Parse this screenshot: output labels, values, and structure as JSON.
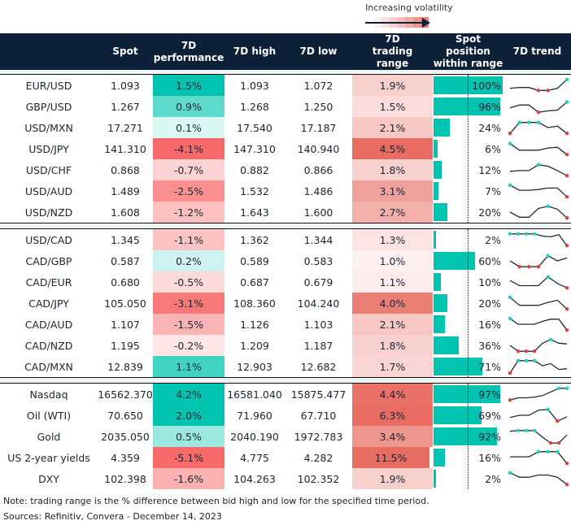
{
  "legend": {
    "label": "Increasing volatility",
    "gradient": [
      "#fdf0f0",
      "#fbe1e1",
      "#f8d0cf",
      "#f5bebd",
      "#f2aaa8",
      "#ee9592",
      "#ea7f7b"
    ]
  },
  "header": {
    "columns": [
      {
        "key": "name",
        "label": ""
      },
      {
        "key": "spot",
        "label": "Spot"
      },
      {
        "key": "perf",
        "label": "7D performance"
      },
      {
        "key": "high",
        "label": "7D high"
      },
      {
        "key": "low",
        "label": "7D low"
      },
      {
        "key": "range",
        "label": "7D trading range"
      },
      {
        "key": "pos",
        "label": "Spot position within range"
      },
      {
        "key": "trend",
        "label": "7D trend"
      }
    ]
  },
  "sections": [
    {
      "rows": [
        {
          "name": "EUR/USD",
          "spot": "1.093",
          "perf": "1.5%",
          "perf_val": 1.5,
          "high": "1.093",
          "low": "1.072",
          "range": "1.9%",
          "range_val": 1.9,
          "pos": "100%",
          "pos_val": 100,
          "trend": [
            0.3,
            0.35,
            0.35,
            0.15,
            0.15,
            0.3,
            0.9
          ]
        },
        {
          "name": "GBP/USD",
          "spot": "1.267",
          "perf": "0.9%",
          "perf_val": 0.9,
          "high": "1.268",
          "low": "1.250",
          "range": "1.5%",
          "range_val": 1.5,
          "pos": "96%",
          "pos_val": 96,
          "trend": [
            0.4,
            0.6,
            0.6,
            0.1,
            0.2,
            0.25,
            0.8
          ]
        },
        {
          "name": "USD/MXN",
          "spot": "17.271",
          "perf": "0.1%",
          "perf_val": 0.1,
          "high": "17.540",
          "low": "17.187",
          "range": "2.1%",
          "range_val": 2.1,
          "pos": "24%",
          "pos_val": 24,
          "trend": [
            0.1,
            0.85,
            0.85,
            0.85,
            0.5,
            0.6,
            0.1
          ]
        },
        {
          "name": "USD/JPY",
          "spot": "141.310",
          "perf": "-4.1%",
          "perf_val": -4.1,
          "high": "147.310",
          "low": "140.940",
          "range": "4.5%",
          "range_val": 4.5,
          "pos": "6%",
          "pos_val": 6,
          "trend": [
            0.85,
            0.4,
            0.4,
            0.4,
            0.55,
            0.6,
            0.1
          ]
        },
        {
          "name": "USD/CHF",
          "spot": "0.868",
          "perf": "-0.7%",
          "perf_val": -0.7,
          "high": "0.882",
          "low": "0.866",
          "range": "1.8%",
          "range_val": 1.8,
          "pos": "12%",
          "pos_val": 12,
          "trend": [
            0.4,
            0.45,
            0.45,
            0.85,
            0.75,
            0.45,
            0.1
          ]
        },
        {
          "name": "USD/AUD",
          "spot": "1.489",
          "perf": "-2.5%",
          "perf_val": -2.5,
          "high": "1.532",
          "low": "1.486",
          "range": "3.1%",
          "range_val": 3.1,
          "pos": "7%",
          "pos_val": 7,
          "trend": [
            0.9,
            0.55,
            0.55,
            0.6,
            0.7,
            0.7,
            0.1
          ]
        },
        {
          "name": "USD/NZD",
          "spot": "1.608",
          "perf": "-1.2%",
          "perf_val": -1.2,
          "high": "1.643",
          "low": "1.600",
          "range": "2.7%",
          "range_val": 2.7,
          "pos": "20%",
          "pos_val": 20,
          "trend": [
            0.5,
            0.15,
            0.15,
            0.75,
            0.9,
            0.7,
            0.1
          ]
        }
      ]
    },
    {
      "rows": [
        {
          "name": "USD/CAD",
          "spot": "1.345",
          "perf": "-1.1%",
          "perf_val": -1.1,
          "high": "1.362",
          "low": "1.344",
          "range": "1.3%",
          "range_val": 1.3,
          "pos": "2%",
          "pos_val": 2,
          "trend": [
            0.9,
            0.9,
            0.9,
            0.9,
            0.75,
            0.7,
            0.85,
            0.1
          ]
        },
        {
          "name": "CAD/GBP",
          "spot": "0.587",
          "perf": "0.2%",
          "perf_val": 0.2,
          "high": "0.589",
          "low": "0.583",
          "range": "1.0%",
          "range_val": 1.0,
          "pos": "60%",
          "pos_val": 60,
          "trend": [
            0.5,
            0.1,
            0.1,
            0.1,
            0.85,
            0.5,
            0.7
          ]
        },
        {
          "name": "CAD/EUR",
          "spot": "0.680",
          "perf": "-0.5%",
          "perf_val": -0.5,
          "high": "0.687",
          "low": "0.679",
          "range": "1.1%",
          "range_val": 1.1,
          "pos": "10%",
          "pos_val": 10,
          "trend": [
            0.6,
            0.25,
            0.25,
            0.25,
            0.85,
            0.4,
            0.1
          ]
        },
        {
          "name": "CAD/JPY",
          "spot": "105.050",
          "perf": "-3.1%",
          "perf_val": -3.1,
          "high": "108.360",
          "low": "104.240",
          "range": "4.0%",
          "range_val": 4.0,
          "pos": "20%",
          "pos_val": 20,
          "trend": [
            0.9,
            0.35,
            0.35,
            0.35,
            0.55,
            0.7,
            0.1
          ]
        },
        {
          "name": "CAD/AUD",
          "spot": "1.107",
          "perf": "-1.5%",
          "perf_val": -1.5,
          "high": "1.126",
          "low": "1.103",
          "range": "2.1%",
          "range_val": 2.1,
          "pos": "16%",
          "pos_val": 16,
          "trend": [
            0.9,
            0.5,
            0.5,
            0.5,
            0.7,
            0.85,
            0.85,
            0.1
          ]
        },
        {
          "name": "CAD/NZD",
          "spot": "1.195",
          "perf": "-0.2%",
          "perf_val": -0.2,
          "high": "1.209",
          "low": "1.187",
          "range": "1.8%",
          "range_val": 1.8,
          "pos": "36%",
          "pos_val": 36,
          "trend": [
            0.5,
            0.1,
            0.1,
            0.1,
            0.65,
            0.9,
            0.65,
            0.6
          ]
        },
        {
          "name": "CAD/MXN",
          "spot": "12.839",
          "perf": "1.1%",
          "perf_val": 1.1,
          "high": "12.903",
          "low": "12.682",
          "range": "1.7%",
          "range_val": 1.7,
          "pos": "71%",
          "pos_val": 71,
          "trend": [
            0.05,
            0.9,
            0.9,
            0.9,
            0.55,
            0.7,
            0.3,
            0.35
          ]
        }
      ]
    },
    {
      "rows": [
        {
          "name": "Nasdaq",
          "spot": "16562.370",
          "perf": "4.2%",
          "perf_val": 4.2,
          "high": "16581.040",
          "low": "15875.477",
          "range": "4.4%",
          "range_val": 4.4,
          "pos": "97%",
          "pos_val": 97,
          "trend": [
            0.1,
            0.25,
            0.25,
            0.3,
            0.4,
            0.65,
            0.9,
            0.9
          ]
        },
        {
          "name": "Oil (WTI)",
          "spot": "70.650",
          "perf": "2.0%",
          "perf_val": 2.0,
          "high": "71.960",
          "low": "67.710",
          "range": "6.3%",
          "range_val": 6.3,
          "pos": "69%",
          "pos_val": 69,
          "trend": [
            0.35,
            0.5,
            0.5,
            0.85,
            0.9,
            0.1,
            0.4
          ]
        },
        {
          "name": "Gold",
          "spot": "2035.050",
          "perf": "0.5%",
          "perf_val": 0.5,
          "high": "2040.190",
          "low": "1972.783",
          "range": "3.4%",
          "range_val": 3.4,
          "pos": "92%",
          "pos_val": 92,
          "trend": [
            0.85,
            0.9,
            0.9,
            0.9,
            0.45,
            0.05,
            0.05,
            0.6
          ]
        },
        {
          "name": "US 2-year yields",
          "spot": "4.359",
          "perf": "-5.1%",
          "perf_val": -5.1,
          "high": "4.775",
          "low": "4.282",
          "range": "11.5%",
          "range_val": 11.5,
          "pos": "16%",
          "pos_val": 16,
          "trend": [
            0.55,
            0.55,
            0.55,
            0.9,
            0.9,
            0.9,
            0.1
          ]
        },
        {
          "name": "DXY",
          "spot": "102.398",
          "perf": "-1.6%",
          "perf_val": -1.6,
          "high": "104.263",
          "low": "102.352",
          "range": "1.9%",
          "range_val": 1.9,
          "pos": "2%",
          "pos_val": 2,
          "trend": [
            0.9,
            0.6,
            0.6,
            0.75,
            0.75,
            0.6,
            0.1
          ]
        }
      ]
    }
  ],
  "colors": {
    "header_bg": "#0c2038",
    "bar": "#00c4b0",
    "spark_line": "#1c2a3a",
    "spark_max": "#1fcfbf",
    "spark_min": "#e0413a"
  },
  "notes": {
    "note": "Note: trading range is the % difference between bid high and low for the specified time period.",
    "sources": "Sources: Refinitiv, Convera - December 14, 2023"
  }
}
